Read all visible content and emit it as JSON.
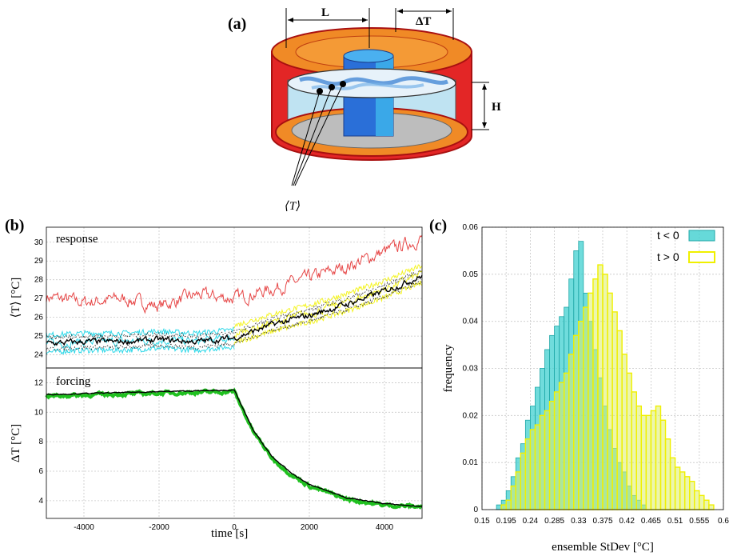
{
  "panel_a": {
    "label": "(a)",
    "dim_L": "L",
    "dim_dT": "ΔT",
    "dim_H": "H",
    "probe_label": "⟨T⟩"
  },
  "panel_b": {
    "label": "(b)",
    "top_label": "response",
    "bottom_label": "forcing",
    "xlabel": "time [s]"
  },
  "panel_c": {
    "label": "(c)"
  },
  "chart_data": [
    {
      "type": "line",
      "panel": "b-response",
      "title": "response",
      "ylabel": "⟨T⟩ [°C]",
      "xlabel": "",
      "xlim": [
        -5000,
        5000
      ],
      "ylim": [
        23.3,
        30.8
      ],
      "yticks": [
        24,
        25,
        26,
        27,
        28,
        29,
        30
      ],
      "grid": true,
      "series": [
        {
          "color": "#e64646",
          "x": [
            -5000,
            -4000,
            -3000,
            -2000,
            -1000,
            0,
            1000,
            2000,
            3000,
            4000,
            5000
          ],
          "y": [
            27.1,
            26.8,
            27.0,
            26.6,
            27.2,
            27.0,
            27.5,
            28.1,
            28.7,
            29.5,
            30.2
          ]
        },
        {
          "color": "#2fd8e8",
          "x": [
            -5000,
            -4000,
            -3000,
            -2000,
            -1000,
            0
          ],
          "y": [
            24.6,
            24.7,
            24.7,
            24.8,
            24.7,
            24.9
          ]
        },
        {
          "color": "#f4f424",
          "x": [
            0,
            1000,
            2000,
            3000,
            4000,
            5000
          ],
          "y": [
            25.1,
            25.7,
            26.2,
            26.8,
            27.5,
            28.3
          ]
        },
        {
          "color": "#000000",
          "x": [
            -5000,
            -4000,
            -3000,
            -2000,
            -1000,
            0,
            1000,
            2000,
            3000,
            4000,
            5000
          ],
          "y": [
            24.6,
            24.7,
            24.7,
            24.8,
            24.7,
            24.9,
            25.6,
            26.1,
            26.7,
            27.4,
            28.2
          ]
        }
      ]
    },
    {
      "type": "line",
      "panel": "b-forcing",
      "title": "forcing",
      "ylabel": "ΔT [°C]",
      "xlabel": "time [s]",
      "xlim": [
        -5000,
        5000
      ],
      "ylim": [
        2.8,
        13.0
      ],
      "yticks": [
        4,
        6,
        8,
        10,
        12
      ],
      "xticks": [
        -4000,
        -2000,
        0,
        2000,
        4000
      ],
      "grid": true,
      "series": [
        {
          "color": "#20c020",
          "x": [
            -5000,
            -2000,
            0,
            500,
            1000,
            1500,
            2000,
            3000,
            4000,
            5000
          ],
          "y": [
            11.1,
            11.3,
            11.4,
            8.7,
            6.9,
            5.8,
            5.0,
            4.1,
            3.7,
            3.6
          ]
        },
        {
          "color": "#000000",
          "x": [
            -5000,
            -2000,
            0,
            500,
            1000,
            1500,
            2000,
            3000,
            4000,
            5000
          ],
          "y": [
            11.2,
            11.4,
            11.5,
            8.8,
            7.0,
            5.9,
            5.1,
            4.2,
            3.8,
            3.6
          ]
        }
      ]
    },
    {
      "type": "bar",
      "panel": "c",
      "title": "",
      "xlabel": "ensemble StDev [°C]",
      "ylabel": "frequency",
      "xlim": [
        0.15,
        0.6
      ],
      "ylim": [
        0,
        0.06
      ],
      "xticks": [
        "0.15",
        "0.195",
        "0.24",
        "0.285",
        "0.33",
        "0.375",
        "0.42",
        "0.465",
        "0.51",
        "0.555",
        "0.6"
      ],
      "yticks": [
        "0",
        "0.01",
        "0.02",
        "0.03",
        "0.04",
        "0.05",
        "0.06"
      ],
      "legend_position": "top-right",
      "bin_start": 0.15,
      "bin_width": 0.009,
      "series": [
        {
          "name": "t < 0",
          "color": "#40d0d0",
          "values": [
            0,
            0,
            0,
            0.001,
            0.002,
            0.004,
            0.007,
            0.011,
            0.014,
            0.019,
            0.022,
            0.026,
            0.03,
            0.034,
            0.037,
            0.039,
            0.041,
            0.043,
            0.049,
            0.055,
            0.057,
            0.046,
            0.04,
            0.034,
            0.028,
            0.022,
            0.017,
            0.013,
            0.01,
            0.008,
            0.005,
            0.003,
            0.002,
            0.001,
            0,
            0,
            0,
            0,
            0,
            0,
            0,
            0,
            0,
            0,
            0,
            0,
            0,
            0,
            0,
            0
          ]
        },
        {
          "name": "t > 0",
          "color": "#f0f000",
          "values": [
            0,
            0,
            0,
            0,
            0.001,
            0.002,
            0.005,
            0.008,
            0.012,
            0.015,
            0.017,
            0.018,
            0.02,
            0.021,
            0.023,
            0.025,
            0.027,
            0.029,
            0.033,
            0.037,
            0.04,
            0.043,
            0.046,
            0.049,
            0.052,
            0.05,
            0.046,
            0.042,
            0.038,
            0.033,
            0.029,
            0.025,
            0.022,
            0.02,
            0.02,
            0.021,
            0.022,
            0.019,
            0.015,
            0.011,
            0.009,
            0.008,
            0.007,
            0.006,
            0.004,
            0.003,
            0.002,
            0.001,
            0,
            0
          ]
        }
      ]
    }
  ]
}
